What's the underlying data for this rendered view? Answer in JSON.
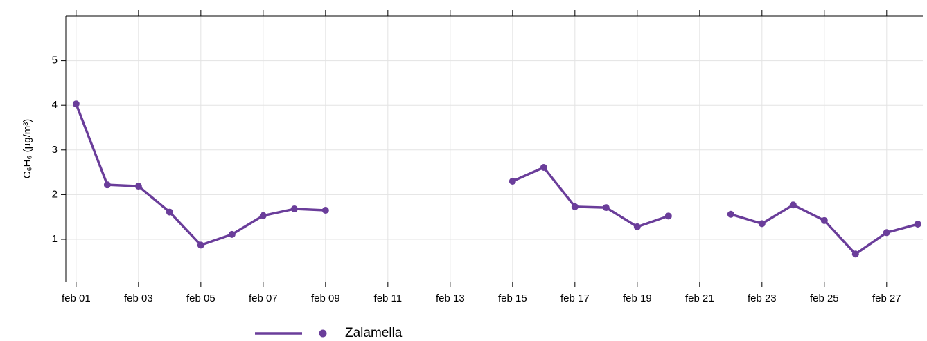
{
  "chart_data": {
    "type": "line",
    "y_label": "C₆H₆ (µg/m³)",
    "categories": [
      "feb 01",
      null,
      "feb 03",
      null,
      "feb 05",
      null,
      "feb 07",
      null,
      "feb 09",
      null,
      "feb 11",
      null,
      "feb 13",
      null,
      "feb 15",
      null,
      "feb 17",
      null,
      "feb 19",
      null,
      "feb 21",
      null,
      "feb 23",
      null,
      "feb 25",
      null,
      "feb 27",
      null
    ],
    "series": [
      {
        "name": "Zalamella",
        "color": "#6a3d9a",
        "values": [
          4.03,
          2.22,
          2.19,
          1.61,
          0.87,
          1.11,
          1.53,
          1.68,
          1.65,
          null,
          null,
          null,
          null,
          null,
          2.3,
          2.61,
          1.73,
          1.71,
          1.28,
          1.52,
          null,
          1.56,
          1.35,
          1.77,
          1.42,
          0.67,
          1.15,
          1.34
        ]
      }
    ],
    "ylim": [
      0.04,
      6
    ],
    "yticks": [
      1,
      2,
      3,
      4,
      5
    ],
    "grid": true,
    "legend": "bottom"
  }
}
